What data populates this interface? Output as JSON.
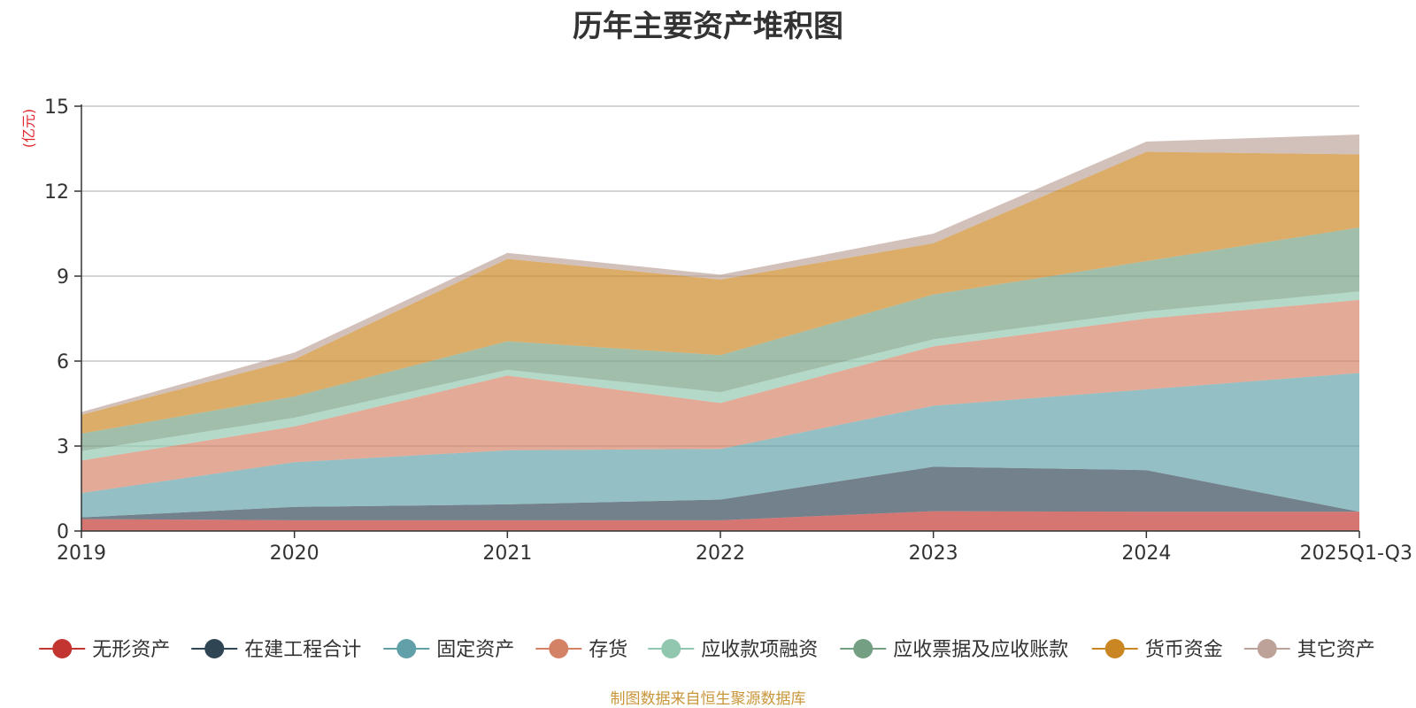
{
  "chart_data": {
    "type": "area",
    "stacked": true,
    "title": "历年主要资产堆积图",
    "ylabel": "(亿元)",
    "xlabel": "",
    "ylim": [
      0,
      15
    ],
    "yticks": [
      0,
      3,
      6,
      9,
      12,
      15
    ],
    "grid": true,
    "legend_position": "bottom",
    "categories": [
      "2019",
      "2020",
      "2021",
      "2022",
      "2023",
      "2024",
      "2025Q1-Q3"
    ],
    "series": [
      {
        "name": "无形资产",
        "color": "#c23531",
        "values": [
          0.42,
          0.38,
          0.38,
          0.38,
          0.7,
          0.68,
          0.68
        ]
      },
      {
        "name": "在建工程合计",
        "color": "#2f4554",
        "values": [
          0.06,
          0.47,
          0.56,
          0.73,
          1.57,
          1.47,
          0.0
        ]
      },
      {
        "name": "固定资产",
        "color": "#61a0a8",
        "values": [
          0.86,
          1.58,
          1.91,
          1.79,
          2.15,
          2.85,
          4.9
        ]
      },
      {
        "name": "存货",
        "color": "#d48265",
        "values": [
          1.15,
          1.26,
          2.64,
          1.62,
          2.1,
          2.5,
          2.58
        ]
      },
      {
        "name": "应收款项融资",
        "color": "#91c7ae",
        "values": [
          0.33,
          0.31,
          0.2,
          0.38,
          0.25,
          0.25,
          0.3
        ]
      },
      {
        "name": "应收票据及应收账款",
        "color": "#749f83",
        "values": [
          0.62,
          0.75,
          1.01,
          1.31,
          1.58,
          1.78,
          2.26
        ]
      },
      {
        "name": "货币资金",
        "color": "#ca8622",
        "values": [
          0.66,
          1.31,
          2.91,
          2.67,
          1.81,
          3.86,
          2.58
        ]
      },
      {
        "name": "其它资产",
        "color": "#bda29a",
        "values": [
          0.1,
          0.24,
          0.21,
          0.17,
          0.34,
          0.36,
          0.7
        ]
      }
    ]
  },
  "source_text": "制图数据来自恒生聚源数据库",
  "colors": {
    "unit_label": "#e0262c",
    "source_text": "#c9963a",
    "axis": "#333333",
    "grid": "#bbbbbb"
  }
}
